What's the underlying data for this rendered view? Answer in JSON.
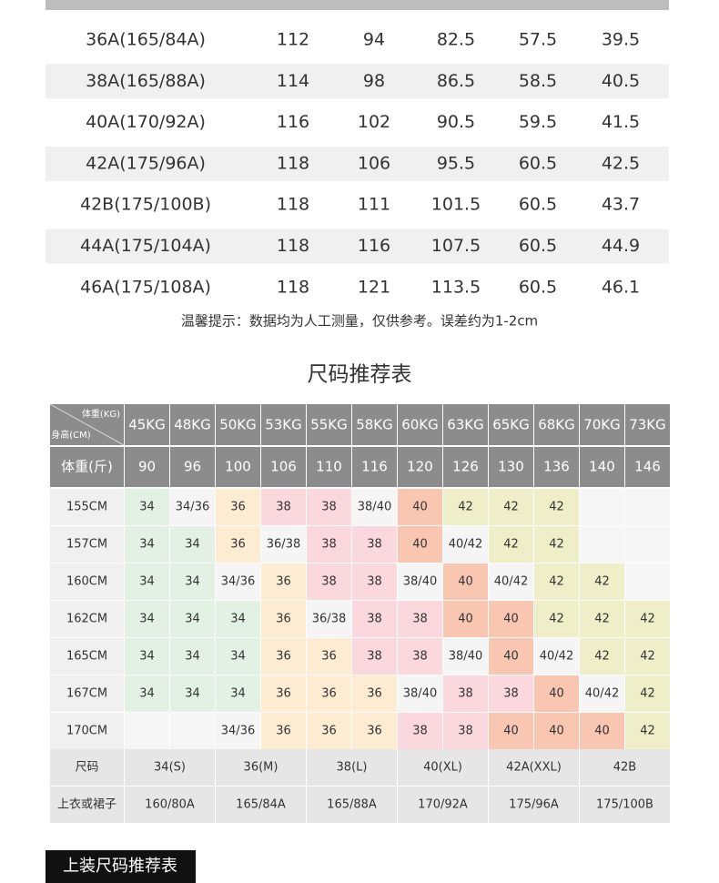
{
  "table1": {
    "rows": [
      [
        "36A(165/84A)",
        "112",
        "94",
        "82.5",
        "57.5",
        "39.5"
      ],
      [
        "38A(165/88A)",
        "114",
        "98",
        "86.5",
        "58.5",
        "40.5"
      ],
      [
        "40A(170/92A)",
        "116",
        "102",
        "90.5",
        "59.5",
        "41.5"
      ],
      [
        "42A(175/96A)",
        "118",
        "106",
        "95.5",
        "60.5",
        "42.5"
      ],
      [
        "42B(175/100B)",
        "118",
        "111",
        "101.5",
        "60.5",
        "43.7"
      ],
      [
        "44A(175/104A)",
        "118",
        "116",
        "107.5",
        "60.5",
        "44.9"
      ],
      [
        "46A(175/108A)",
        "118",
        "121",
        "113.5",
        "60.5",
        "46.1"
      ]
    ]
  },
  "note": "温馨提示：数据均为人工测量，仅供参考。误差约为1-2cm",
  "table2": {
    "title": "尺码推荐表",
    "corner_top": "体重(KG)",
    "corner_bottom": "身高(CM)",
    "weights_kg": [
      "45KG",
      "48KG",
      "50KG",
      "53KG",
      "55KG",
      "58KG",
      "60KG",
      "63KG",
      "65KG",
      "68KG",
      "70KG",
      "73KG"
    ],
    "weight_label": "体重(斤)",
    "weights_jin": [
      90,
      96,
      100,
      106,
      110,
      116,
      120,
      126,
      130,
      136,
      140,
      146
    ],
    "rows": [
      {
        "height": "155CM",
        "sizes": [
          "34",
          "34/36",
          "36",
          "38",
          "38",
          "38/40",
          "40",
          "42",
          "42",
          "42",
          null,
          null
        ]
      },
      {
        "height": "157CM",
        "sizes": [
          "34",
          "34",
          "36",
          "36/38",
          "38",
          "38",
          "40",
          "40/42",
          "42",
          "42",
          null,
          null
        ]
      },
      {
        "height": "160CM",
        "sizes": [
          "34",
          "34",
          "34/36",
          "36",
          "38",
          "38",
          "38/40",
          "40",
          "40/42",
          "42",
          "42",
          null
        ]
      },
      {
        "height": "162CM",
        "sizes": [
          "34",
          "34",
          "34",
          "36",
          "36/38",
          "38",
          "38",
          "40",
          "40",
          "42",
          "42",
          "42"
        ]
      },
      {
        "height": "165CM",
        "sizes": [
          "34",
          "34",
          "34",
          "36",
          "36",
          "38",
          "38",
          "38/40",
          "40",
          "40/42",
          "42",
          "42"
        ]
      },
      {
        "height": "167CM",
        "sizes": [
          "34",
          "34",
          "34",
          "36",
          "36",
          "36",
          "38/40",
          "38",
          "38",
          "40",
          "40/42",
          "42"
        ]
      },
      {
        "height": "170CM",
        "sizes": [
          null,
          null,
          "34/36",
          "36",
          "36",
          "36",
          "38",
          "38",
          "40",
          "40",
          "40",
          "42"
        ]
      }
    ],
    "size_label": "尺码",
    "size_names": [
      "34(S)",
      "36(M)",
      "38(L)",
      "40(XL)",
      "42A(XXL)",
      "42B"
    ],
    "garment_label": "上衣或裙子",
    "garments": [
      "160/80A",
      "165/84A",
      "165/88A",
      "170/92A",
      "175/96A",
      "175/100B"
    ],
    "palette": {
      "34": "#e3f1e5",
      "36": "#fdebd2",
      "38": "#fbd8dd",
      "40": "#f9c6b2",
      "42": "#eeeec9"
    },
    "mixed_color": "#f5f5f5",
    "empty_color": "#f6f6f6"
  },
  "section_title": "上装尺码推荐表"
}
